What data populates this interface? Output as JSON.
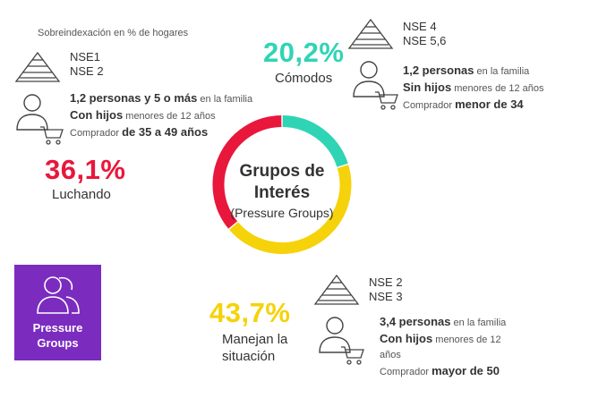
{
  "subtitle": "Sobreindexación en % de hogares",
  "center": {
    "title_line1": "Grupos de",
    "title_line2": "Interés",
    "subtitle": "(Pressure Groups)"
  },
  "badge": {
    "label_line1": "Pressure",
    "label_line2": "Groups",
    "color": "#7b2cbf",
    "icon": "people-icon"
  },
  "segments": {
    "luchando": {
      "percent": "36,1%",
      "label": "Luchando",
      "color": "#e8173b",
      "nse": [
        "NSE1",
        "NSE 2"
      ],
      "line1_bold": "1,2 personas y 5 o más",
      "line1_rest": " en la familia",
      "line2_bold": "Con hijos",
      "line2_rest": " menores de 12 años",
      "line3_pre": "Comprador ",
      "line3_bold": "de 35 a 49 años"
    },
    "comodos": {
      "percent": "20,2%",
      "label": "Cómodos",
      "color": "#2fd4b5",
      "nse": [
        "NSE 4",
        "NSE 5,6"
      ],
      "line1_bold": "1,2 personas",
      "line1_rest": " en la familia",
      "line2_bold": "Sin hijos",
      "line2_rest": " menores de 12 años",
      "line3_pre": "Comprador ",
      "line3_bold": "menor de 34"
    },
    "manejan": {
      "percent": "43,7%",
      "label_line1": "Manejan la",
      "label_line2": "situación",
      "color": "#f5d20a",
      "nse": [
        "NSE 2",
        "NSE 3"
      ],
      "line1_bold": "3,4 personas",
      "line1_rest": " en la familia",
      "line2_bold": "Con hijos",
      "line2_rest": " menores de 12",
      "line2b": "años",
      "line3_pre": "Comprador ",
      "line3_bold": "mayor de 50"
    }
  },
  "chart_data": {
    "type": "pie",
    "categories": [
      "Cómodos",
      "Manejan la situación",
      "Luchando"
    ],
    "values": [
      20.2,
      43.7,
      36.1
    ],
    "colors": [
      "#2fd4b5",
      "#f5d20a",
      "#e8173b"
    ]
  }
}
